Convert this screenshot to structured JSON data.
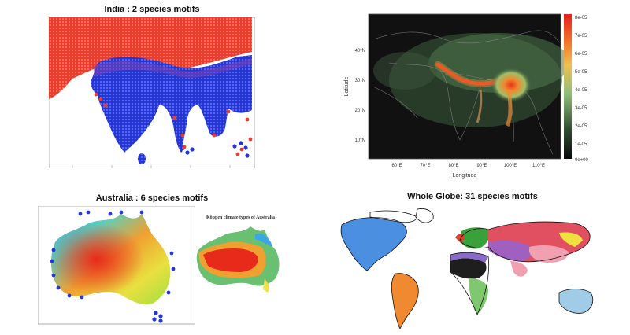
{
  "panels": {
    "india": {
      "title": "India : 2 species motifs"
    },
    "heatmap": {
      "xlabel": "Longitude",
      "ylabel": "Latitude",
      "x_ticks": [
        "60°E",
        "70°E",
        "80°E",
        "90°E",
        "100°E",
        "110°E"
      ],
      "y_ticks": [
        "40°N",
        "30°N",
        "20°N",
        "10°N"
      ],
      "colorbar_ticks": [
        "8e-05",
        "7e-05",
        "6e-05",
        "5e-05",
        "4e-05",
        "3e-05",
        "2e-05",
        "1e-05",
        "0e+00"
      ]
    },
    "australia": {
      "title": "Australia : 6 species motifs",
      "inset_title": "Köppen climate types of Australia"
    },
    "globe": {
      "title": "Whole Globe: 31 species motifs"
    }
  },
  "colors": {
    "red": "#f03a2a",
    "blue": "#2536d8",
    "heat_low": "#101010",
    "heat_mid": "#7fae6a",
    "heat_high": "#e8341c"
  }
}
